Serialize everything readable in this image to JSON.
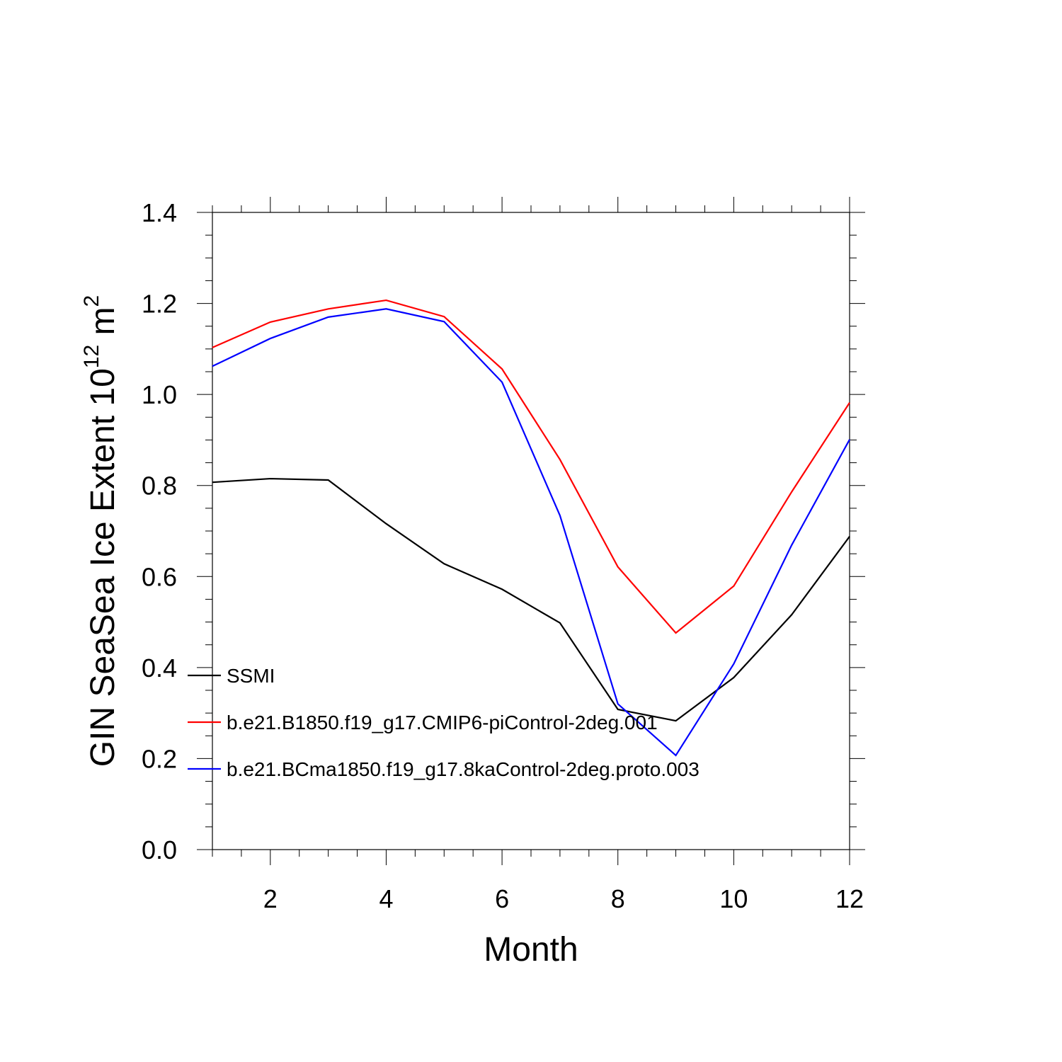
{
  "chart_data": {
    "type": "line",
    "title": "",
    "xlabel": "Month",
    "ylabel_main": "GIN SeaSea Ice Extent 10",
    "ylabel_exp1": "12",
    "ylabel_unit": " m",
    "ylabel_exp2": "2",
    "xlim": [
      1,
      12
    ],
    "ylim": [
      0,
      1.4
    ],
    "xticks": [
      2,
      4,
      6,
      8,
      10,
      12
    ],
    "xtick_labels": [
      "2",
      "4",
      "6",
      "8",
      "10",
      "12"
    ],
    "yticks": [
      0,
      0.2,
      0.4,
      0.6,
      0.8,
      1.0,
      1.2,
      1.4
    ],
    "ytick_labels": [
      "0.0",
      "0.2",
      "0.4",
      "0.6",
      "0.8",
      "1.0",
      "1.2",
      "1.4"
    ],
    "grid": false,
    "legend_placement": "lower-left",
    "x": [
      1,
      2,
      3,
      4,
      5,
      6,
      7,
      8,
      9,
      10,
      11,
      12
    ],
    "series": [
      {
        "name": "SSMI",
        "color": "#000000",
        "values": [
          0.807,
          0.815,
          0.812,
          0.716,
          0.628,
          0.572,
          0.498,
          0.308,
          0.283,
          0.378,
          0.516,
          0.688
        ]
      },
      {
        "name": "b.e21.B1850.f19_g17.CMIP6-piControl-2deg.001",
        "color": "#ff0000",
        "values": [
          1.103,
          1.159,
          1.188,
          1.207,
          1.171,
          1.056,
          0.857,
          0.621,
          0.476,
          0.579,
          0.786,
          0.982
        ]
      },
      {
        "name": "b.e21.BCma1850.f19_g17.8kaControl-2deg.proto.003",
        "color": "#0000ff",
        "values": [
          1.062,
          1.123,
          1.17,
          1.188,
          1.16,
          1.027,
          0.734,
          0.32,
          0.207,
          0.408,
          0.669,
          0.901
        ]
      }
    ]
  }
}
